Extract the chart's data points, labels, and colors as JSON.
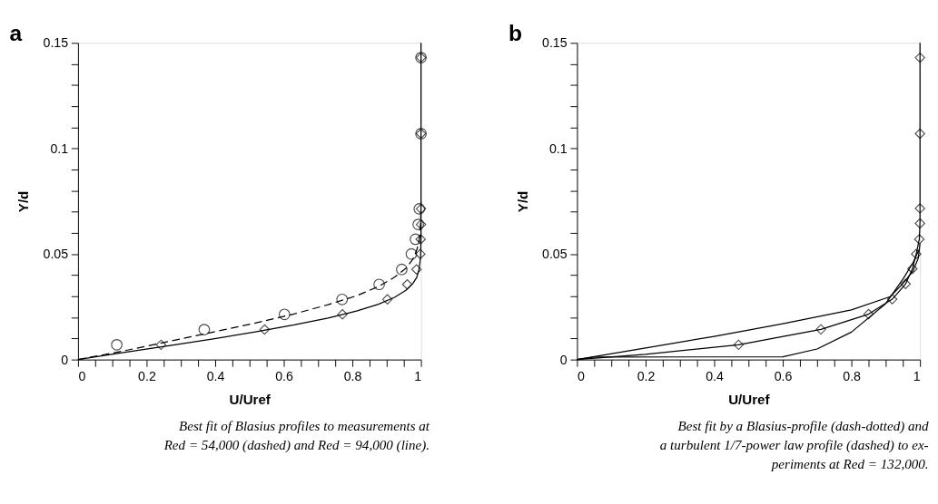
{
  "chart_data": [
    {
      "type": "line",
      "title": "a",
      "xlabel": "U/Uref",
      "ylabel": "Y/d",
      "grid": false,
      "xlim": [
        0,
        1
      ],
      "ylim": [
        0,
        0.15
      ],
      "xticks": [
        0,
        {
          "value": 0.05,
          "label": null
        },
        {
          "value": 0.1,
          "label": null
        },
        {
          "value": 0.15,
          "label": null
        },
        0.2,
        {
          "value": 0.25,
          "label": null
        },
        {
          "value": 0.3,
          "label": null
        },
        {
          "value": 0.35,
          "label": null
        },
        0.4,
        {
          "value": 0.45,
          "label": null
        },
        {
          "value": 0.5,
          "label": null
        },
        {
          "value": 0.55,
          "label": null
        },
        0.6,
        {
          "value": 0.65,
          "label": null
        },
        {
          "value": 0.7,
          "label": null
        },
        {
          "value": 0.75,
          "label": null
        },
        0.8,
        {
          "value": 0.85,
          "label": null
        },
        {
          "value": 0.9,
          "label": null
        },
        {
          "value": 0.95,
          "label": null
        },
        1
      ],
      "yticks": [
        0,
        {
          "value": 0.01,
          "label": null
        },
        {
          "value": 0.02,
          "label": null
        },
        {
          "value": 0.03,
          "label": null
        },
        {
          "value": 0.04,
          "label": null
        },
        0.05,
        {
          "value": 0.06,
          "label": null
        },
        {
          "value": 0.07,
          "label": null
        },
        {
          "value": 0.08,
          "label": null
        },
        {
          "value": 0.09,
          "label": null
        },
        0.1,
        {
          "value": 0.11,
          "label": null
        },
        {
          "value": 0.12,
          "label": null
        },
        {
          "value": 0.13,
          "label": null
        },
        {
          "value": 0.14,
          "label": null
        },
        0.15
      ],
      "annotations": [
        "Best fit of Blasius profiles to measurements at\nRed = 54,000 (dashed) and Red = 94,000 (line)."
      ],
      "series": [
        {
          "type": "line",
          "line_style": "dashed",
          "color": "#000000",
          "x": [
            0,
            0.13,
            0.265,
            0.394,
            0.517,
            0.63,
            0.729,
            0.812,
            0.876,
            0.923,
            0.956,
            0.976,
            0.988,
            0.994,
            0.997,
            0.999,
            1
          ],
          "values": [
            0,
            0.004,
            0.0086,
            0.013,
            0.0173,
            0.0216,
            0.026,
            0.0302,
            0.0346,
            0.039,
            0.0432,
            0.0475,
            0.052,
            0.056,
            0.06,
            0.065,
            0.075
          ]
        },
        {
          "type": "line",
          "line_style": "solid",
          "color": "#000000",
          "x": [
            0,
            0.133,
            0.265,
            0.394,
            0.517,
            0.63,
            0.729,
            0.812,
            0.876,
            0.923,
            0.956,
            0.976,
            0.988,
            0.994,
            0.997,
            0.999,
            1,
            1
          ],
          "values": [
            0,
            0.0033,
            0.0066,
            0.0098,
            0.0131,
            0.0164,
            0.0197,
            0.023,
            0.0262,
            0.0295,
            0.0328,
            0.036,
            0.039,
            0.0426,
            0.046,
            0.049,
            0.057,
            0.15
          ]
        },
        {
          "type": "scatter",
          "marker": "circle",
          "color": "#000000",
          "x": [
            0.113,
            0.368,
            0.602,
            0.77,
            0.878,
            0.944,
            0.972,
            0.984,
            0.992,
            0.995,
            1,
            1
          ],
          "values": [
            0.007,
            0.0142,
            0.0214,
            0.0285,
            0.0356,
            0.0427,
            0.05,
            0.057,
            0.064,
            0.0714,
            0.107,
            0.143
          ]
        },
        {
          "type": "scatter",
          "marker": "diamond",
          "color": "#000000",
          "x": [
            0.242,
            0.544,
            0.771,
            0.902,
            0.96,
            0.987,
            0.998,
            0.999,
            1,
            1,
            1,
            1
          ],
          "values": [
            0.007,
            0.0142,
            0.0214,
            0.0285,
            0.0356,
            0.0427,
            0.05,
            0.057,
            0.064,
            0.0714,
            0.107,
            0.143
          ]
        }
      ]
    },
    {
      "type": "line",
      "title": "b",
      "xlabel": "U/Uref",
      "ylabel": "Y/d",
      "grid": false,
      "xlim": [
        0,
        1
      ],
      "ylim": [
        0,
        0.15
      ],
      "xticks": [
        0,
        {
          "value": 0.05,
          "label": null
        },
        {
          "value": 0.1,
          "label": null
        },
        {
          "value": 0.15,
          "label": null
        },
        0.2,
        {
          "value": 0.25,
          "label": null
        },
        {
          "value": 0.3,
          "label": null
        },
        {
          "value": 0.35,
          "label": null
        },
        0.4,
        {
          "value": 0.45,
          "label": null
        },
        {
          "value": 0.5,
          "label": null
        },
        {
          "value": 0.55,
          "label": null
        },
        0.6,
        {
          "value": 0.65,
          "label": null
        },
        {
          "value": 0.7,
          "label": null
        },
        {
          "value": 0.75,
          "label": null
        },
        0.8,
        {
          "value": 0.85,
          "label": null
        },
        {
          "value": 0.9,
          "label": null
        },
        {
          "value": 0.95,
          "label": null
        },
        1
      ],
      "yticks": [
        0,
        {
          "value": 0.01,
          "label": null
        },
        {
          "value": 0.02,
          "label": null
        },
        {
          "value": 0.03,
          "label": null
        },
        {
          "value": 0.04,
          "label": null
        },
        0.05,
        {
          "value": 0.06,
          "label": null
        },
        {
          "value": 0.07,
          "label": null
        },
        {
          "value": 0.08,
          "label": null
        },
        {
          "value": 0.09,
          "label": null
        },
        0.1,
        {
          "value": 0.11,
          "label": null
        },
        {
          "value": 0.12,
          "label": null
        },
        {
          "value": 0.13,
          "label": null
        },
        {
          "value": 0.14,
          "label": null
        },
        0.15
      ],
      "annotations": [
        "Best fit by a Blasius-profile (dash-dotted) and\na turbulent 1/7-power law profile (dashed) to ex-\nperiments at Red = 132,000."
      ],
      "series": [
        {
          "type": "line",
          "line_style": "solid",
          "color": "#000000",
          "x": [
            0,
            0.2,
            0.4,
            0.6,
            0.8,
            0.913,
            0.95,
            0.98,
            0.995,
            1
          ],
          "values": [
            0,
            0.0055,
            0.011,
            0.017,
            0.0235,
            0.0298,
            0.036,
            0.042,
            0.048,
            0.055
          ]
        },
        {
          "type": "line",
          "line_style": "solid",
          "color": "#000000",
          "x": [
            0,
            0.2,
            0.471,
            0.711,
            0.85,
            0.919,
            0.958,
            0.978,
            0.989,
            0.998,
            1,
            1
          ],
          "values": [
            0,
            0.0025,
            0.007,
            0.0143,
            0.0215,
            0.0286,
            0.0358,
            0.043,
            0.05,
            0.057,
            0.065,
            0.15
          ]
        },
        {
          "type": "line",
          "line_style": "solid",
          "color": "#000000",
          "x": [
            0,
            0.05,
            0.6,
            0.7,
            0.8,
            0.9,
            0.95,
            0.98,
            0.997
          ],
          "values": [
            0,
            0.0012,
            0.0013,
            0.005,
            0.013,
            0.0265,
            0.038,
            0.046,
            0.052
          ]
        },
        {
          "type": "scatter",
          "marker": "diamond",
          "color": "#000000",
          "x": [
            0.471,
            0.711,
            0.85,
            0.919,
            0.958,
            0.978,
            0.989,
            0.998,
            1,
            1,
            1,
            1
          ],
          "values": [
            0.007,
            0.0143,
            0.0215,
            0.0286,
            0.0358,
            0.043,
            0.05,
            0.057,
            0.0645,
            0.0716,
            0.107,
            0.143
          ]
        }
      ]
    }
  ]
}
